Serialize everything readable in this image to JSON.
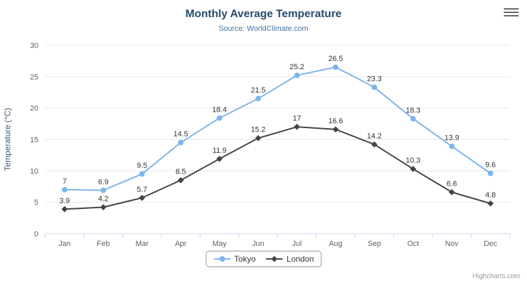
{
  "credits": "Highcharts.com",
  "colors": {
    "title": "#274b6d",
    "subtitle": "#4572a7",
    "axis_label": "#606060",
    "axis_title": "#3e576f",
    "grid": "#e6e6e6",
    "axis_line": "#ccd6eb",
    "data_label": "#333333",
    "legend_border": "#999999",
    "credits": "#999999"
  },
  "chart_data": {
    "type": "line",
    "title": "Monthly Average Temperature",
    "subtitle": "Source: WorldClimate.com",
    "categories": [
      "Jan",
      "Feb",
      "Mar",
      "Apr",
      "May",
      "Jun",
      "Jul",
      "Aug",
      "Sep",
      "Oct",
      "Nov",
      "Dec"
    ],
    "series": [
      {
        "name": "Tokyo",
        "color": "#7cb5ec",
        "marker": "circle",
        "values": [
          7,
          6.9,
          9.5,
          14.5,
          18.4,
          21.5,
          25.2,
          26.5,
          23.3,
          18.3,
          13.9,
          9.6
        ]
      },
      {
        "name": "London",
        "color": "#434348",
        "marker": "diamond",
        "values": [
          3.9,
          4.2,
          5.7,
          8.5,
          11.9,
          15.2,
          17,
          16.6,
          14.2,
          10.3,
          6.6,
          4.8
        ]
      }
    ],
    "xlabel": "",
    "ylabel": "Temperature (°C)",
    "ylim": [
      0,
      30
    ],
    "yticks": [
      0,
      5,
      10,
      15,
      20,
      25,
      30
    ],
    "grid": true,
    "legend_position": "bottom"
  }
}
